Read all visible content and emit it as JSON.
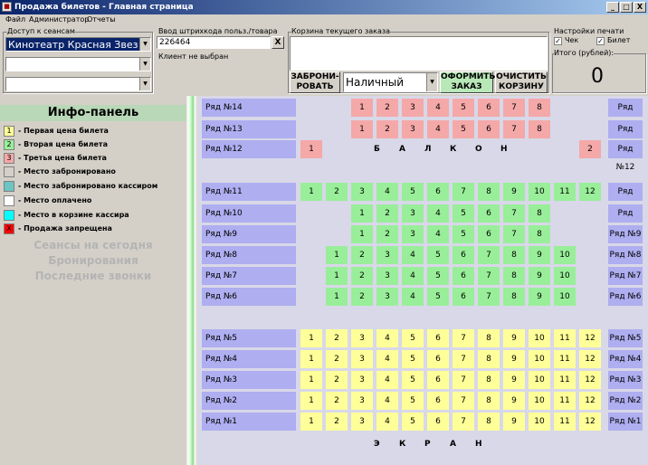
{
  "window": {
    "title": "Продажа билетов - Главная страница",
    "minimize": "_",
    "maximize": "□",
    "close": "X"
  },
  "menu": [
    "Файл",
    "Администратор",
    "Отчеты"
  ],
  "sessions": {
    "label": "Доступ к сеансам",
    "selected": "Кинотеатр Красная Звезда (",
    "combo2": "",
    "combo3": ""
  },
  "barcode": {
    "label": "Ввод штрихкода польз./товара",
    "value": "226464",
    "clear": "X",
    "status": "Клиент не выбран"
  },
  "cart": {
    "label": "Корзина текущего заказа",
    "reserve_label": "ЗАБРОНИ-\nРОВАТЬ",
    "payment": "Наличный",
    "checkout_label": "ОФОРМИТЬ\nЗАКАЗ",
    "clear_label": "ОЧИСТИТЬ\nКОРЗИНУ"
  },
  "print": {
    "label": "Настройки печати",
    "check": "Чек",
    "ticket": "Билет"
  },
  "total": {
    "label": "Итого (рублей):",
    "value": "0"
  },
  "info": {
    "title": "Инфо-панель",
    "legend": [
      {
        "mark": "1",
        "color": "#ffff99",
        "text": "- Первая цена билета"
      },
      {
        "mark": "2",
        "color": "#99ee99",
        "text": "- Вторая цена билета"
      },
      {
        "mark": "3",
        "color": "#f4a8a8",
        "text": "- Третья цена билета"
      },
      {
        "mark": "",
        "color": "#d4d0c8",
        "text": "- Место забронировано"
      },
      {
        "mark": "",
        "color": "#6cc4c4",
        "text": "- Место забронировано кассиром"
      },
      {
        "mark": "",
        "color": "#ffffff",
        "text": "- Место оплачено"
      },
      {
        "mark": "",
        "color": "#00ffff",
        "text": "- Место в корзине кассира"
      },
      {
        "mark": "X",
        "color": "#ff0000",
        "text": "- Продажа запрещена"
      }
    ],
    "links": [
      "Сеансы на сегодня",
      "Бронирования",
      "Последние звонки"
    ]
  },
  "hall": {
    "balcony_letters": [
      "Б",
      "А",
      "Л",
      "К",
      "О",
      "Н"
    ],
    "screen_letters": [
      "Э",
      "К",
      "Р",
      "А",
      "Н"
    ],
    "rows": [
      {
        "label": "Ряд №14",
        "price": 3,
        "start_col": 2,
        "seats": [
          "1",
          "2",
          "3",
          "4",
          "5",
          "6",
          "7",
          "8"
        ]
      },
      {
        "label": "Ряд №13",
        "price": 3,
        "start_col": 2,
        "seats": [
          "1",
          "2",
          "3",
          "4",
          "5",
          "6",
          "7",
          "8"
        ]
      },
      {
        "label": "Ряд №12",
        "price": 3,
        "balcony": true,
        "seats": [
          "1",
          "2"
        ]
      },
      {
        "label": "Ряд №11",
        "price": 2,
        "start_col": 0,
        "seats": [
          "1",
          "2",
          "3",
          "4",
          "5",
          "6",
          "7",
          "8",
          "9",
          "10",
          "11",
          "12"
        ]
      },
      {
        "label": "Ряд №10",
        "price": 2,
        "start_col": 2,
        "seats": [
          "1",
          "2",
          "3",
          "4",
          "5",
          "6",
          "7",
          "8"
        ]
      },
      {
        "label": "Ряд №9",
        "price": 2,
        "start_col": 2,
        "seats": [
          "1",
          "2",
          "3",
          "4",
          "5",
          "6",
          "7",
          "8"
        ]
      },
      {
        "label": "Ряд №8",
        "price": 2,
        "start_col": 1,
        "seats": [
          "1",
          "2",
          "3",
          "4",
          "5",
          "6",
          "7",
          "8",
          "9",
          "10"
        ]
      },
      {
        "label": "Ряд №7",
        "price": 2,
        "start_col": 1,
        "seats": [
          "1",
          "2",
          "3",
          "4",
          "5",
          "6",
          "7",
          "8",
          "9",
          "10"
        ]
      },
      {
        "label": "Ряд №6",
        "price": 2,
        "start_col": 1,
        "seats": [
          "1",
          "2",
          "3",
          "4",
          "5",
          "6",
          "7",
          "8",
          "9",
          "10"
        ]
      },
      {
        "label": "Ряд №5",
        "price": 1,
        "start_col": 0,
        "seats": [
          "1",
          "2",
          "3",
          "4",
          "5",
          "6",
          "7",
          "8",
          "9",
          "10",
          "11",
          "12"
        ]
      },
      {
        "label": "Ряд №4",
        "price": 1,
        "start_col": 0,
        "seats": [
          "1",
          "2",
          "3",
          "4",
          "5",
          "6",
          "7",
          "8",
          "9",
          "10",
          "11",
          "12"
        ]
      },
      {
        "label": "Ряд №3",
        "price": 1,
        "start_col": 0,
        "seats": [
          "1",
          "2",
          "3",
          "4",
          "5",
          "6",
          "7",
          "8",
          "9",
          "10",
          "11",
          "12"
        ]
      },
      {
        "label": "Ряд №2",
        "price": 1,
        "start_col": 0,
        "seats": [
          "1",
          "2",
          "3",
          "4",
          "5",
          "6",
          "7",
          "8",
          "9",
          "10",
          "11",
          "12"
        ]
      },
      {
        "label": "Ряд №1",
        "price": 1,
        "start_col": 0,
        "seats": [
          "1",
          "2",
          "3",
          "4",
          "5",
          "6",
          "7",
          "8",
          "9",
          "10",
          "11",
          "12"
        ]
      }
    ]
  }
}
